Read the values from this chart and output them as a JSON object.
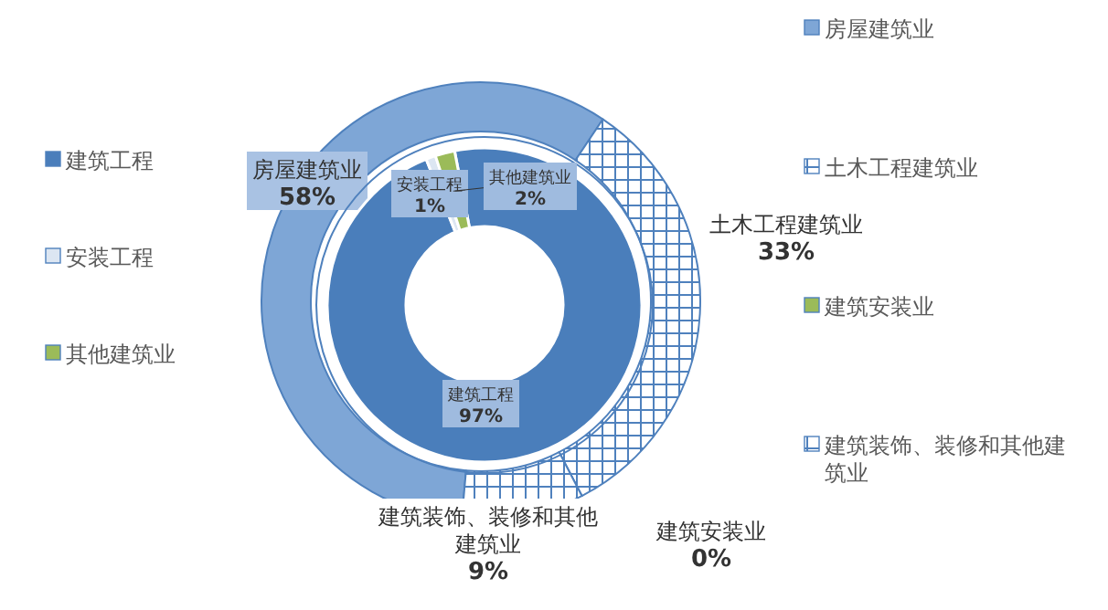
{
  "chart_data": [
    {
      "type": "donut",
      "categories": [
        "房屋建筑业",
        "土木工程建筑业",
        "建筑安装业",
        "建筑装饰、装修和其他建筑业"
      ],
      "values": [
        58,
        33,
        0,
        9
      ],
      "value_labels": [
        "58%",
        "33%",
        "0%",
        "9%"
      ],
      "colors": [
        "#7ea6d6",
        "#4f81bd",
        "#9bbb59",
        "#4f81bd"
      ],
      "legend": "right"
    },
    {
      "type": "donut",
      "categories": [
        "建筑工程",
        "安装工程",
        "其他建筑业"
      ],
      "values": [
        97,
        1,
        2
      ],
      "value_labels": [
        "97%",
        "1%",
        "2%"
      ],
      "colors": [
        "#4a7ebb",
        "#dce6f2",
        "#9bbb59"
      ],
      "legend": "left"
    }
  ]
}
